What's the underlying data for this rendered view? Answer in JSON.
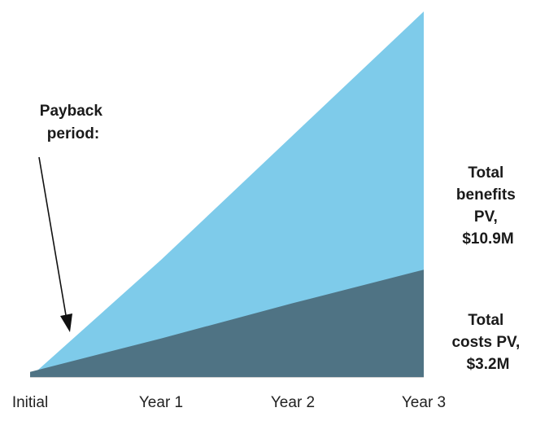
{
  "chart_data": {
    "type": "area",
    "categories": [
      "Initial",
      "Year 1",
      "Year 2",
      "Year 3"
    ],
    "series": [
      {
        "name": "Total benefits PV",
        "values": [
          0,
          3.5,
          7.2,
          10.9
        ],
        "color": "#7ecbea"
      },
      {
        "name": "Total costs PV",
        "values": [
          0.15,
          1.15,
          2.2,
          3.2
        ],
        "color": "#4f7384"
      }
    ],
    "ylim": [
      0,
      11
    ],
    "grid": false,
    "legend": "none",
    "annotations": {
      "payback": [
        "Payback",
        "period:"
      ],
      "benefits": [
        "Total",
        "benefits",
        "PV,",
        "$10.9M"
      ],
      "costs": [
        "Total",
        "costs PV,",
        "$3.2M"
      ]
    }
  }
}
